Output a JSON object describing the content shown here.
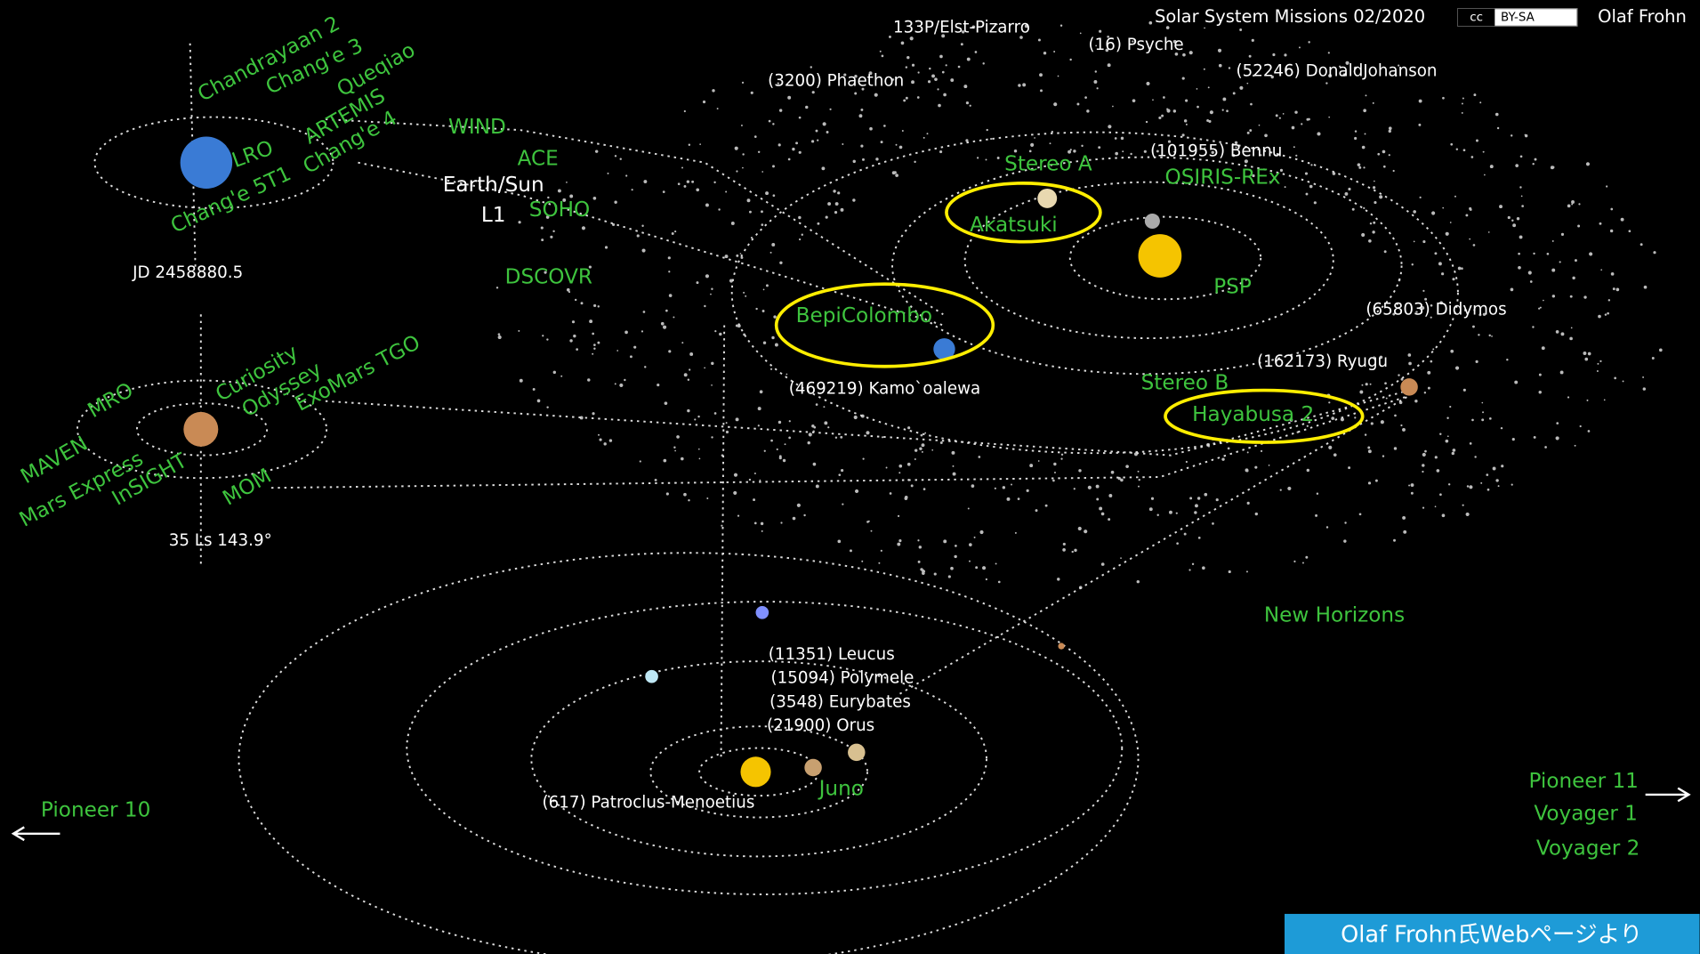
{
  "header": {
    "title": "Solar System Missions 02/2020",
    "license_cc": "cc",
    "license": "BY-SA",
    "author": "Olaf Frohn"
  },
  "missions": [
    "Chandrayaan 2",
    "Chang'e 3",
    "Queqiao",
    "ARTEMIS",
    "Chang'e 4",
    "LRO",
    "Chang'e 5T1",
    "WIND",
    "ACE",
    "SOHO",
    "DSCOVR",
    "Stereo A",
    "OSIRIS-REx",
    "Akatsuki",
    "PSP",
    "BepiColombo",
    "Stereo B",
    "Hayabusa 2",
    "MRO",
    "Curiosity",
    "Odyssey",
    "ExoMars TGO",
    "MAVEN",
    "Mars Express",
    "InSIGHT",
    "MOM",
    "New Horizons",
    "Juno",
    "Pioneer 10",
    "Pioneer 11",
    "Voyager 1",
    "Voyager 2"
  ],
  "objects": [
    "Earth/Sun",
    "L1",
    "JD 2458880.5",
    "35 Ls 143.9°",
    "133P/Elst-Pizarro",
    "(16) Psyche",
    "(3200) Phaethon",
    "(52246) DonaldJohanson",
    "(101955) Bennu",
    "(65803) Didymos",
    "(162173) Ryugu",
    "(469219) Kamo`oalewa",
    "(11351) Leucus",
    "(15094) Polymele",
    "(3548) Eurybates",
    "(21900) Orus",
    "(617) Patroclus-Menoetius"
  ],
  "footer": "Olaf Frohn氏Webページより"
}
